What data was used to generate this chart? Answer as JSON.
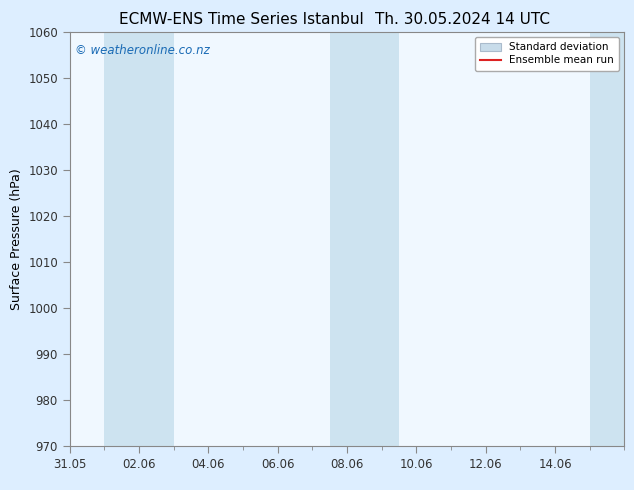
{
  "title_left": "ECMW-ENS Time Series Istanbul",
  "title_right": "Th. 30.05.2024 14 UTC",
  "ylabel": "Surface Pressure (hPa)",
  "ylim": [
    970,
    1060
  ],
  "yticks": [
    970,
    980,
    990,
    1000,
    1010,
    1020,
    1030,
    1040,
    1050,
    1060
  ],
  "xlim_start": 0,
  "xlim_end": 16,
  "xtick_labels": [
    "31.05",
    "02.06",
    "04.06",
    "06.06",
    "08.06",
    "10.06",
    "12.06",
    "14.06"
  ],
  "xtick_positions": [
    0,
    2,
    4,
    6,
    8,
    10,
    12,
    14
  ],
  "shaded_bands": [
    {
      "x_start": 1.0,
      "x_end": 3.0,
      "color": "#cde3f0"
    },
    {
      "x_start": 7.5,
      "x_end": 9.5,
      "color": "#cde3f0"
    },
    {
      "x_start": 15.0,
      "x_end": 16.0,
      "color": "#cde3f0"
    }
  ],
  "watermark": "© weatheronline.co.nz",
  "watermark_color": "#1a6bb5",
  "background_color": "#ddeeff",
  "plot_bg_color": "#f0f8ff",
  "spine_color": "#888888",
  "tick_color": "#333333",
  "std_dev_color": "#c8dcea",
  "std_dev_edge_color": "#aabbcc",
  "ensemble_mean_color": "#dd2222",
  "legend_std_label": "Standard deviation",
  "legend_ensemble_label": "Ensemble mean run",
  "title_fontsize": 11,
  "axis_label_fontsize": 9,
  "tick_fontsize": 8.5
}
